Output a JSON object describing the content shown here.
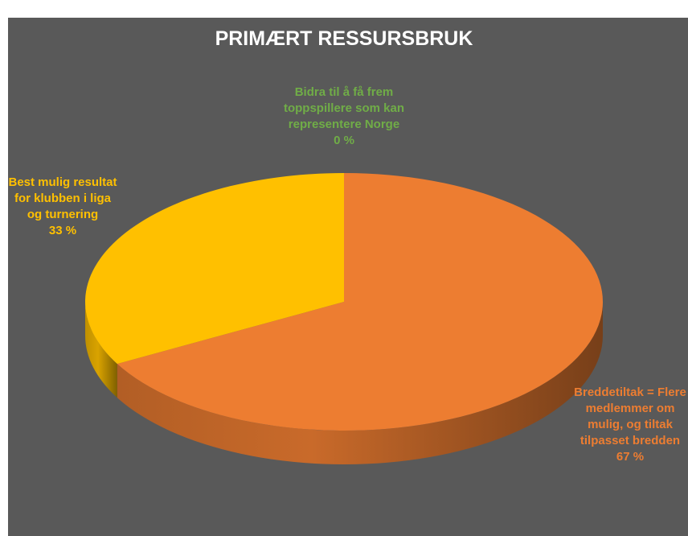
{
  "chart_data": {
    "type": "pie3d",
    "title": "PRIMÆRT RESSURSBRUK",
    "categories": [
      "Breddetiltak = Flere medlemmer om mulig, og tiltak tilpasset bredden",
      "Best mulig resultat for klubben i liga og turnering",
      "Bidra til å få frem toppspillere som kan representere Norge"
    ],
    "values": [
      67,
      33,
      0
    ],
    "value_labels": [
      "67 %",
      "33 %",
      "0 %"
    ],
    "colors": [
      "#ed7d31",
      "#ffc000",
      "#70ad47"
    ]
  }
}
